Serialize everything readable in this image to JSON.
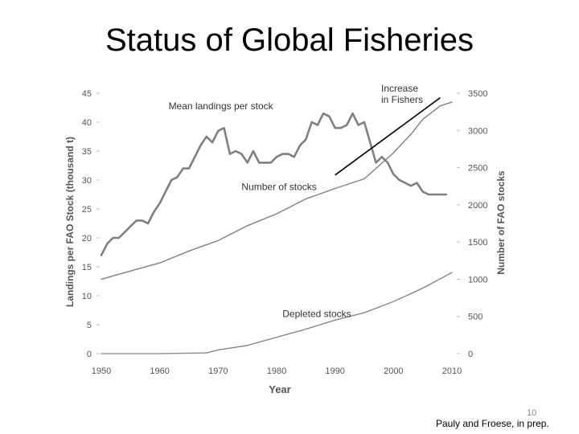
{
  "slide": {
    "title": "Status of Global Fisheries",
    "page_number": "10",
    "source": "Pauly and Froese, in prep."
  },
  "chart_data": {
    "type": "line",
    "xlabel": "Year",
    "ylabel_left": "Landings per FAO Stock (thousand t)",
    "ylabel_right": "Number of FAO stocks",
    "xlim": [
      1950,
      2010
    ],
    "ylim_left": [
      0,
      45
    ],
    "ylim_right": [
      0,
      3500
    ],
    "x_ticks": [
      "1950",
      "1960",
      "1970",
      "1980",
      "1990",
      "2000",
      "2010"
    ],
    "y_ticks_left": [
      "0",
      "5",
      "10",
      "15",
      "20",
      "25",
      "30",
      "35",
      "40",
      "45"
    ],
    "y_ticks_right": [
      "0",
      "500",
      "1000",
      "1500",
      "2000",
      "2500",
      "3000",
      "3500"
    ],
    "grid": false,
    "series": [
      {
        "name": "Mean landings per stock",
        "axis": "left",
        "color": "#808080",
        "x": [
          1950,
          1951,
          1952,
          1953,
          1954,
          1955,
          1956,
          1957,
          1958,
          1959,
          1960,
          1961,
          1962,
          1963,
          1964,
          1965,
          1966,
          1967,
          1968,
          1969,
          1970,
          1971,
          1972,
          1973,
          1974,
          1975,
          1976,
          1977,
          1978,
          1979,
          1980,
          1981,
          1982,
          1983,
          1984,
          1985,
          1986,
          1987,
          1988,
          1989,
          1990,
          1991,
          1992,
          1993,
          1994,
          1995,
          1996,
          1997,
          1998,
          1999,
          2000,
          2001,
          2002,
          2003,
          2004,
          2005,
          2006,
          2007,
          2008,
          2009
        ],
        "y": [
          17,
          19,
          20,
          20,
          21,
          22,
          23,
          23,
          22.5,
          24.5,
          26,
          28,
          30,
          30.5,
          32,
          32,
          34,
          36,
          37.5,
          36.5,
          38.5,
          39,
          34.5,
          35,
          34.5,
          33,
          35,
          33,
          33,
          33,
          34,
          34.5,
          34.5,
          34,
          36,
          37,
          40,
          39.5,
          41.5,
          41,
          39,
          39,
          39.5,
          41.5,
          39.5,
          40,
          36.5,
          33,
          34,
          33,
          31,
          30,
          29.5,
          29,
          29.5,
          28,
          27.5,
          27.5,
          27.5,
          27.5
        ]
      },
      {
        "name": "Number of stocks",
        "axis": "right",
        "color": "#808080",
        "x": [
          1950,
          1955,
          1960,
          1965,
          1970,
          1975,
          1980,
          1985,
          1990,
          1995,
          2000,
          2003,
          2005,
          2008,
          2010
        ],
        "y": [
          1000,
          1110,
          1220,
          1380,
          1520,
          1720,
          1880,
          2080,
          2220,
          2350,
          2700,
          2950,
          3150,
          3330,
          3380
        ]
      },
      {
        "name": "Depleted stocks",
        "axis": "right",
        "color": "#808080",
        "x": [
          1950,
          1960,
          1968,
          1970,
          1975,
          1980,
          1985,
          1990,
          1995,
          2000,
          2005,
          2010
        ],
        "y": [
          0,
          0,
          10,
          50,
          110,
          220,
          330,
          450,
          550,
          700,
          880,
          1090
        ]
      }
    ],
    "annotations": [
      {
        "text": "Increase in Fishers",
        "lines": [
          "Increase",
          "in Fishers"
        ],
        "arrow_from": [
          1990,
          2400
        ],
        "arrow_to": [
          2008,
          3440
        ]
      }
    ]
  }
}
